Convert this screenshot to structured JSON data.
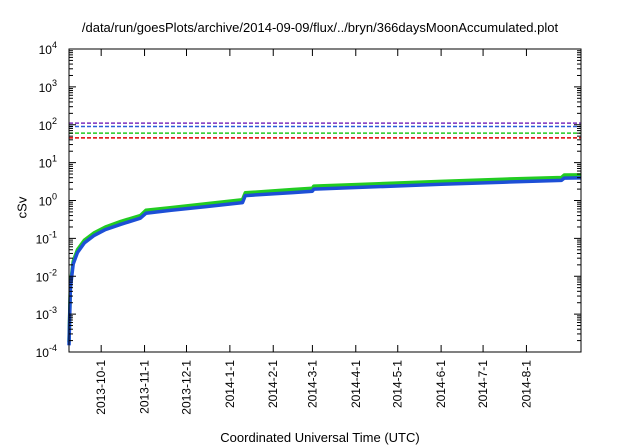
{
  "chart_data": {
    "type": "line",
    "title": "/data/run/goesPlots/archive/2014-09-09/flux/../bryn/366daysMoonAccumulated.plot",
    "xlabel": "Coordinated Universal Time (UTC)",
    "ylabel": "cSv",
    "xscale": "time",
    "yscale": "log",
    "xlim": [
      "2013-09-08",
      "2014-09-09"
    ],
    "ylim": [
      0.0001,
      10000
    ],
    "grid": false,
    "legend": "none",
    "x_ticks": [
      "2013-10-1",
      "2013-11-1",
      "2013-12-1",
      "2014-1-1",
      "2014-2-1",
      "2014-3-1",
      "2014-4-1",
      "2014-5-1",
      "2014-6-1",
      "2014-7-1",
      "2014-8-1"
    ],
    "y_ticks": [
      {
        "value": 0.0001,
        "base": "10",
        "exp": "-4"
      },
      {
        "value": 0.001,
        "base": "10",
        "exp": "-3"
      },
      {
        "value": 0.01,
        "base": "10",
        "exp": "-2"
      },
      {
        "value": 0.1,
        "base": "10",
        "exp": "-1"
      },
      {
        "value": 1,
        "base": "10",
        "exp": "0"
      },
      {
        "value": 10,
        "base": "10",
        "exp": "1"
      },
      {
        "value": 100,
        "base": "10",
        "exp": "2"
      },
      {
        "value": 1000,
        "base": "10",
        "exp": "3"
      },
      {
        "value": 10000,
        "base": "10",
        "exp": "4"
      }
    ],
    "reference_lines": [
      {
        "value": 110,
        "color": "#7b2fbe",
        "style": "dashed"
      },
      {
        "value": 90,
        "color": "#2b5bd8",
        "style": "dashed"
      },
      {
        "value": 60,
        "color": "#22cc22",
        "style": "dashed"
      },
      {
        "value": 45,
        "color": "#dd0000",
        "style": "dashed"
      }
    ],
    "series": [
      {
        "color": "#22cc22",
        "points": [
          [
            "2013-09-08",
            0.00018
          ],
          [
            "2013-09-09",
            0.006
          ],
          [
            "2013-09-11",
            0.025
          ],
          [
            "2013-09-14",
            0.05
          ],
          [
            "2013-09-19",
            0.09
          ],
          [
            "2013-09-26",
            0.14
          ],
          [
            "2013-10-04",
            0.2
          ],
          [
            "2013-10-15",
            0.28
          ],
          [
            "2013-10-29",
            0.4
          ],
          [
            "2013-11-02",
            0.55
          ],
          [
            "2013-11-20",
            0.65
          ],
          [
            "2013-12-15",
            0.82
          ],
          [
            "2014-01-10",
            1.05
          ],
          [
            "2014-01-12",
            1.6
          ],
          [
            "2014-02-15",
            1.95
          ],
          [
            "2014-03-01",
            2.1
          ],
          [
            "2014-03-02",
            2.4
          ],
          [
            "2014-04-15",
            2.75
          ],
          [
            "2014-06-01",
            3.2
          ],
          [
            "2014-07-15",
            3.65
          ],
          [
            "2014-08-26",
            4.05
          ],
          [
            "2014-08-28",
            4.7
          ],
          [
            "2014-09-09",
            4.75
          ]
        ]
      },
      {
        "color": "#1d4fd6",
        "points": [
          [
            "2013-09-08",
            0.00015
          ],
          [
            "2013-09-09",
            0.005
          ],
          [
            "2013-09-11",
            0.021
          ],
          [
            "2013-09-14",
            0.042
          ],
          [
            "2013-09-19",
            0.076
          ],
          [
            "2013-09-26",
            0.12
          ],
          [
            "2013-10-04",
            0.17
          ],
          [
            "2013-10-15",
            0.235
          ],
          [
            "2013-10-29",
            0.34
          ],
          [
            "2013-11-02",
            0.46
          ],
          [
            "2013-11-20",
            0.55
          ],
          [
            "2013-12-15",
            0.69
          ],
          [
            "2014-01-10",
            0.88
          ],
          [
            "2014-01-12",
            1.35
          ],
          [
            "2014-02-15",
            1.62
          ],
          [
            "2014-03-01",
            1.76
          ],
          [
            "2014-03-02",
            2.0
          ],
          [
            "2014-04-15",
            2.3
          ],
          [
            "2014-06-01",
            2.68
          ],
          [
            "2014-07-15",
            3.05
          ],
          [
            "2014-08-26",
            3.4
          ],
          [
            "2014-08-28",
            3.9
          ],
          [
            "2014-09-09",
            3.95
          ]
        ]
      }
    ]
  }
}
